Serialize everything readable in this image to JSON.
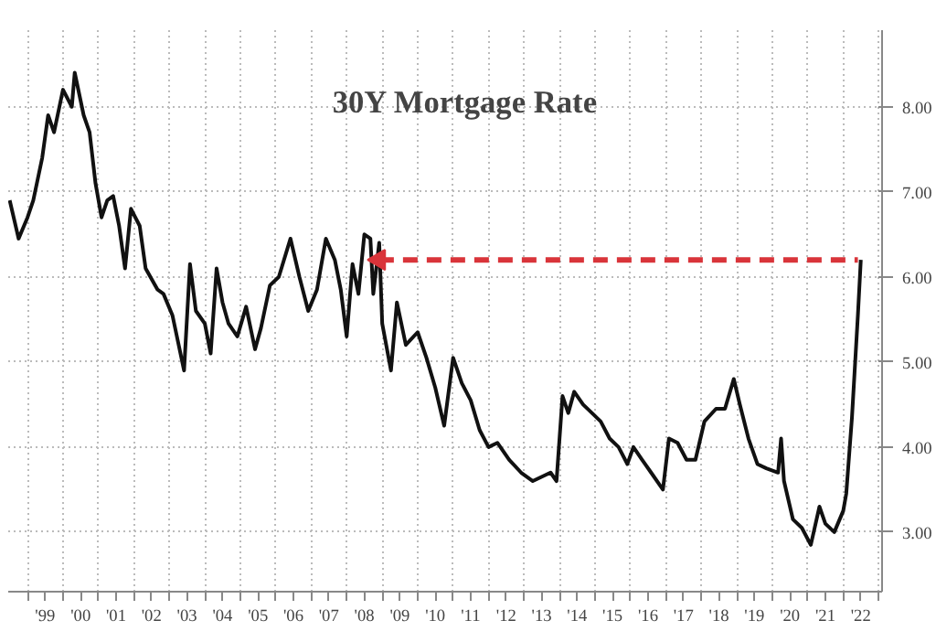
{
  "chart_data": {
    "type": "line",
    "title": "30Y Mortgage Rate",
    "xlim": [
      "1998-06-16",
      "2023-02-05"
    ],
    "ylim": [
      2.3,
      8.9
    ],
    "xticks": [
      {
        "value": "1999-01-01",
        "label": null
      },
      {
        "value": "1999-07-01",
        "label": "'99"
      },
      {
        "value": "2000-01-01",
        "label": null
      },
      {
        "value": "2000-07-01",
        "label": "'00"
      },
      {
        "value": "2001-01-01",
        "label": null
      },
      {
        "value": "2001-07-01",
        "label": "'01"
      },
      {
        "value": "2002-01-01",
        "label": null
      },
      {
        "value": "2002-07-01",
        "label": "'02"
      },
      {
        "value": "2003-01-01",
        "label": null
      },
      {
        "value": "2003-07-01",
        "label": "'03"
      },
      {
        "value": "2004-01-01",
        "label": null
      },
      {
        "value": "2004-07-01",
        "label": "'04"
      },
      {
        "value": "2005-01-01",
        "label": null
      },
      {
        "value": "2005-07-01",
        "label": "'05"
      },
      {
        "value": "2006-01-01",
        "label": null
      },
      {
        "value": "2006-07-01",
        "label": "'06"
      },
      {
        "value": "2007-01-01",
        "label": null
      },
      {
        "value": "2007-07-01",
        "label": "'07"
      },
      {
        "value": "2008-01-01",
        "label": null
      },
      {
        "value": "2008-07-01",
        "label": "'08"
      },
      {
        "value": "2009-01-01",
        "label": null
      },
      {
        "value": "2009-07-01",
        "label": "'09"
      },
      {
        "value": "2010-01-01",
        "label": null
      },
      {
        "value": "2010-07-01",
        "label": "'10"
      },
      {
        "value": "2011-01-01",
        "label": null
      },
      {
        "value": "2011-07-01",
        "label": "'11"
      },
      {
        "value": "2012-01-01",
        "label": null
      },
      {
        "value": "2012-07-01",
        "label": "'12"
      },
      {
        "value": "2013-01-01",
        "label": null
      },
      {
        "value": "2013-07-01",
        "label": "'13"
      },
      {
        "value": "2014-01-01",
        "label": null
      },
      {
        "value": "2014-07-01",
        "label": "'14"
      },
      {
        "value": "2015-01-01",
        "label": null
      },
      {
        "value": "2015-07-01",
        "label": "'15"
      },
      {
        "value": "2016-01-01",
        "label": null
      },
      {
        "value": "2016-07-01",
        "label": "'16"
      },
      {
        "value": "2017-01-01",
        "label": null
      },
      {
        "value": "2017-07-01",
        "label": "'17"
      },
      {
        "value": "2018-01-01",
        "label": null
      },
      {
        "value": "2018-07-01",
        "label": "'18"
      },
      {
        "value": "2019-01-01",
        "label": null
      },
      {
        "value": "2019-07-01",
        "label": "'19"
      },
      {
        "value": "2020-01-01",
        "label": null
      },
      {
        "value": "2020-07-01",
        "label": "'20"
      },
      {
        "value": "2021-01-01",
        "label": null
      },
      {
        "value": "2021-07-01",
        "label": "'21"
      },
      {
        "value": "2022-01-01",
        "label": null
      },
      {
        "value": "2022-07-01",
        "label": "'22"
      },
      {
        "value": "2023-01-01",
        "label": null
      }
    ],
    "yticks": [
      {
        "value": 3,
        "label": "3.00"
      },
      {
        "value": 4,
        "label": "4.00"
      },
      {
        "value": 5,
        "label": "5.00"
      },
      {
        "value": 6,
        "label": "6.00"
      },
      {
        "value": 7,
        "label": "7.00"
      },
      {
        "value": 8,
        "label": "8.00"
      }
    ],
    "grid": true,
    "series": [
      {
        "color": "#111111",
        "line_style": "solid",
        "x": [
          "1998-07",
          "1998-10",
          "1999-01",
          "1999-03",
          "1999-06",
          "1999-08",
          "1999-10",
          "2000-01",
          "2000-04",
          "2000-05",
          "2000-08",
          "2000-10",
          "2000-12",
          "2001-02",
          "2001-04",
          "2001-06",
          "2001-08",
          "2001-10",
          "2001-12",
          "2002-03",
          "2002-05",
          "2002-09",
          "2002-11",
          "2003-02",
          "2003-06",
          "2003-08",
          "2003-10",
          "2004-01",
          "2004-03",
          "2004-05",
          "2004-07",
          "2004-09",
          "2004-12",
          "2005-03",
          "2005-06",
          "2005-08",
          "2005-11",
          "2006-02",
          "2006-06",
          "2006-09",
          "2006-12",
          "2007-03",
          "2007-06",
          "2007-09",
          "2007-11",
          "2008-01",
          "2008-03",
          "2008-05",
          "2008-07",
          "2008-09",
          "2008-10",
          "2008-12",
          "2009-01",
          "2009-04",
          "2009-06",
          "2009-09",
          "2010-01",
          "2010-04",
          "2010-07",
          "2010-10",
          "2011-01",
          "2011-04",
          "2011-07",
          "2011-10",
          "2012-01",
          "2012-04",
          "2012-08",
          "2012-12",
          "2013-04",
          "2013-10",
          "2013-12",
          "2014-02",
          "2014-04",
          "2014-06",
          "2014-09",
          "2014-12",
          "2015-03",
          "2015-06",
          "2015-09",
          "2015-12",
          "2016-02",
          "2016-05",
          "2016-08",
          "2016-12",
          "2017-02",
          "2017-05",
          "2017-08",
          "2017-11",
          "2018-02",
          "2018-06",
          "2018-09",
          "2018-12",
          "2019-02",
          "2019-05",
          "2019-08",
          "2019-11",
          "2020-03",
          "2020-04",
          "2020-05",
          "2020-08",
          "2020-11",
          "2021-02",
          "2021-05",
          "2021-07",
          "2021-10",
          "2022-01",
          "2022-02",
          "2022-04",
          "2022-06",
          "2022-07"
        ],
        "values": [
          6.9,
          6.45,
          6.7,
          6.9,
          7.4,
          7.9,
          7.7,
          8.2,
          8.0,
          8.4,
          7.9,
          7.7,
          7.1,
          6.7,
          6.9,
          6.95,
          6.6,
          6.1,
          6.8,
          6.6,
          6.1,
          5.85,
          5.8,
          5.55,
          4.9,
          6.15,
          5.6,
          5.45,
          5.1,
          6.1,
          5.7,
          5.45,
          5.3,
          5.65,
          5.15,
          5.4,
          5.9,
          6.0,
          6.45,
          6.0,
          5.6,
          5.85,
          6.45,
          6.2,
          5.85,
          5.3,
          6.15,
          5.8,
          6.5,
          6.45,
          5.8,
          6.4,
          5.45,
          4.9,
          5.7,
          5.2,
          5.35,
          5.05,
          4.7,
          4.25,
          5.05,
          4.75,
          4.55,
          4.2,
          4.0,
          4.05,
          3.85,
          3.7,
          3.6,
          3.7,
          3.6,
          4.6,
          4.4,
          4.65,
          4.5,
          4.4,
          4.3,
          4.1,
          4.0,
          3.8,
          4.0,
          3.85,
          3.7,
          3.5,
          4.1,
          4.05,
          3.85,
          3.85,
          4.3,
          4.45,
          4.45,
          4.8,
          4.5,
          4.1,
          3.8,
          3.75,
          3.7,
          4.1,
          3.6,
          3.15,
          3.05,
          2.85,
          3.3,
          3.1,
          3.0,
          3.25,
          3.45,
          4.35,
          5.55,
          6.2
        ]
      },
      {
        "color": "#d9343a",
        "line_style": "dashed",
        "x": [
          "2008-12",
          "2022-06"
        ],
        "values": [
          6.2,
          6.2
        ]
      }
    ]
  }
}
